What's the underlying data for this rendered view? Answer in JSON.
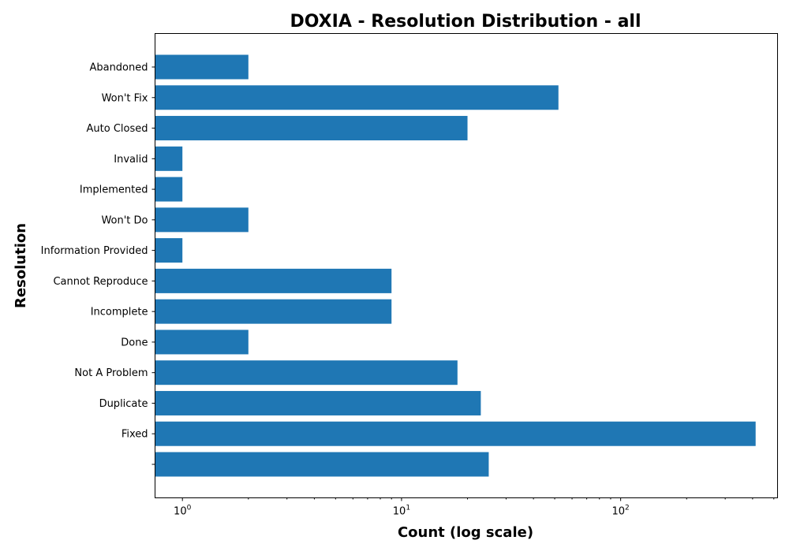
{
  "chart_data": {
    "type": "bar",
    "orientation": "horizontal",
    "title": "DOXIA - Resolution Distribution - all",
    "xlabel": "Count (log scale)",
    "ylabel": "Resolution",
    "x_scale": "log",
    "xlim": [
      0.75,
      520
    ],
    "x_ticks": [
      {
        "value": 1,
        "base": "10",
        "exp": "0"
      },
      {
        "value": 10,
        "base": "10",
        "exp": "1"
      },
      {
        "value": 100,
        "base": "10",
        "exp": "2"
      }
    ],
    "categories": [
      "Abandoned",
      "Won't Fix",
      "Auto Closed",
      "Invalid",
      "Implemented",
      "Won't Do",
      "Information Provided",
      "Cannot Reproduce",
      "Incomplete",
      "Done",
      "Not A Problem",
      "Duplicate",
      "Fixed",
      ""
    ],
    "values": [
      2,
      52,
      20,
      1,
      1,
      2,
      1,
      9,
      9,
      2,
      18,
      23,
      413,
      25
    ],
    "bar_color": "#1f77b4",
    "grid": false,
    "legend": false
  }
}
